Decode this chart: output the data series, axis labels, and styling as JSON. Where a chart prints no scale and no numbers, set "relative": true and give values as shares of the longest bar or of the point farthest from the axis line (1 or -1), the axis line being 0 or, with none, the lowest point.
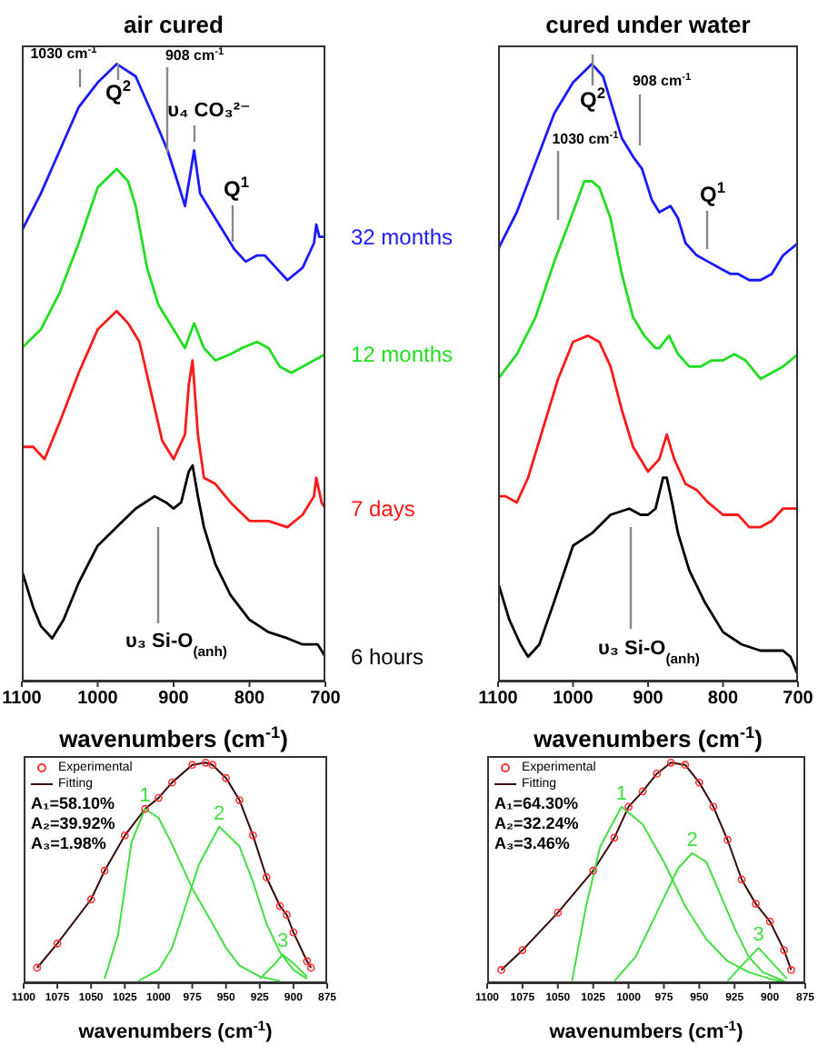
{
  "chart_data": [
    {
      "type": "line",
      "title": "air cured",
      "xlabel": "wavenumbers (cm$^{-1}$)",
      "relative": true,
      "xlim": [
        1100,
        700
      ],
      "xticks": [
        1100,
        1000,
        900,
        800,
        700
      ],
      "legend": false,
      "series": [
        {
          "name": "32 months",
          "color": "#1a1aff",
          "x": [
            1100,
            1075,
            1050,
            1025,
            1000,
            975,
            950,
            925,
            908,
            895,
            885,
            873,
            865,
            850,
            820,
            805,
            790,
            780,
            765,
            750,
            730,
            715,
            712,
            708,
            700
          ],
          "values": [
            0.73,
            0.79,
            0.86,
            0.93,
            0.97,
            1.0,
            0.98,
            0.91,
            0.86,
            0.81,
            0.77,
            0.86,
            0.79,
            0.76,
            0.7,
            0.68,
            0.69,
            0.69,
            0.67,
            0.65,
            0.67,
            0.71,
            0.74,
            0.72,
            0.72
          ]
        },
        {
          "name": "12 months",
          "color": "#22dd22",
          "x": [
            1100,
            1075,
            1050,
            1025,
            1000,
            975,
            960,
            950,
            935,
            920,
            905,
            890,
            885,
            873,
            860,
            845,
            825,
            810,
            790,
            775,
            760,
            745,
            730,
            715,
            700
          ],
          "values": [
            0.54,
            0.57,
            0.63,
            0.71,
            0.8,
            0.83,
            0.81,
            0.77,
            0.67,
            0.61,
            0.58,
            0.55,
            0.54,
            0.58,
            0.54,
            0.52,
            0.53,
            0.54,
            0.55,
            0.54,
            0.51,
            0.5,
            0.51,
            0.52,
            0.53
          ]
        },
        {
          "name": "7 days",
          "color": "#ff1a1a",
          "x": [
            1100,
            1085,
            1070,
            1050,
            1025,
            1000,
            975,
            960,
            945,
            930,
            915,
            900,
            885,
            880,
            875,
            868,
            860,
            845,
            825,
            800,
            775,
            750,
            730,
            715,
            712,
            705,
            700
          ],
          "values": [
            0.38,
            0.38,
            0.36,
            0.42,
            0.5,
            0.57,
            0.6,
            0.58,
            0.55,
            0.47,
            0.39,
            0.36,
            0.4,
            0.48,
            0.52,
            0.4,
            0.33,
            0.32,
            0.29,
            0.26,
            0.26,
            0.25,
            0.27,
            0.3,
            0.33,
            0.29,
            0.28
          ]
        },
        {
          "name": "6 hours",
          "color": "#000000",
          "x": [
            1100,
            1085,
            1075,
            1060,
            1045,
            1025,
            1000,
            975,
            950,
            925,
            910,
            900,
            890,
            880,
            875,
            868,
            860,
            845,
            825,
            800,
            775,
            750,
            730,
            720,
            710,
            700
          ],
          "values": [
            0.18,
            0.12,
            0.09,
            0.07,
            0.1,
            0.16,
            0.22,
            0.25,
            0.28,
            0.3,
            0.29,
            0.28,
            0.29,
            0.34,
            0.35,
            0.3,
            0.25,
            0.19,
            0.14,
            0.1,
            0.08,
            0.07,
            0.06,
            0.06,
            0.06,
            0.04
          ]
        }
      ],
      "annotations": [
        "1030 cm$^{-1}$",
        "Q$^{2}$",
        "908 cm$^{-1}$",
        "υ₄ CO₃²⁻",
        "Q$^{1}$",
        "υ₃ Si-O$_{(anh)}$"
      ]
    },
    {
      "type": "line",
      "title": "cured under water",
      "xlabel": "wavenumbers (cm$^{-1}$)",
      "relative": true,
      "xlim": [
        1100,
        700
      ],
      "xticks": [
        1100,
        1000,
        900,
        800,
        700
      ],
      "legend": false,
      "series": [
        {
          "color": "#1a1aff",
          "x": [
            1100,
            1075,
            1050,
            1025,
            1000,
            975,
            960,
            950,
            935,
            920,
            908,
            895,
            885,
            870,
            860,
            850,
            835,
            820,
            805,
            790,
            780,
            765,
            750,
            735,
            720,
            700
          ],
          "values": [
            0.7,
            0.76,
            0.84,
            0.92,
            0.97,
            1.0,
            0.98,
            0.94,
            0.88,
            0.85,
            0.83,
            0.78,
            0.76,
            0.77,
            0.75,
            0.71,
            0.69,
            0.68,
            0.67,
            0.66,
            0.66,
            0.65,
            0.65,
            0.66,
            0.69,
            0.71
          ]
        },
        {
          "color": "#22dd22",
          "x": [
            1100,
            1075,
            1050,
            1025,
            1000,
            985,
            975,
            965,
            950,
            935,
            920,
            905,
            890,
            885,
            872,
            860,
            845,
            830,
            815,
            800,
            785,
            770,
            750,
            735,
            720,
            700
          ],
          "values": [
            0.49,
            0.53,
            0.59,
            0.68,
            0.76,
            0.81,
            0.81,
            0.8,
            0.75,
            0.66,
            0.59,
            0.56,
            0.54,
            0.54,
            0.56,
            0.53,
            0.51,
            0.51,
            0.52,
            0.52,
            0.53,
            0.52,
            0.49,
            0.5,
            0.51,
            0.53
          ]
        },
        {
          "color": "#ff1a1a",
          "x": [
            1100,
            1090,
            1075,
            1060,
            1040,
            1020,
            1000,
            980,
            965,
            950,
            935,
            920,
            900,
            885,
            875,
            865,
            850,
            835,
            820,
            800,
            780,
            765,
            750,
            735,
            720,
            700
          ],
          "values": [
            0.3,
            0.3,
            0.29,
            0.33,
            0.41,
            0.49,
            0.55,
            0.56,
            0.55,
            0.51,
            0.44,
            0.38,
            0.34,
            0.36,
            0.4,
            0.36,
            0.32,
            0.31,
            0.29,
            0.27,
            0.27,
            0.25,
            0.25,
            0.26,
            0.28,
            0.28
          ]
        },
        {
          "color": "#000000",
          "x": [
            1100,
            1085,
            1070,
            1060,
            1045,
            1025,
            1000,
            975,
            950,
            925,
            910,
            900,
            890,
            880,
            875,
            868,
            860,
            845,
            825,
            800,
            775,
            750,
            730,
            720,
            710,
            700
          ],
          "values": [
            0.16,
            0.1,
            0.06,
            0.04,
            0.06,
            0.13,
            0.22,
            0.24,
            0.27,
            0.28,
            0.27,
            0.27,
            0.28,
            0.33,
            0.33,
            0.29,
            0.24,
            0.18,
            0.13,
            0.08,
            0.06,
            0.05,
            0.05,
            0.05,
            0.04,
            0.01
          ]
        }
      ],
      "annotations": [
        "Q$^{2}$",
        "908 cm$^{-1}$",
        "1030 cm$^{-1}$",
        "Q$^{1}$",
        "υ₃ Si-O$_{(anh)}$"
      ]
    },
    {
      "type": "line",
      "xlabel": "wavenumbers (cm$^{-1}$)",
      "relative": true,
      "xlim": [
        1100,
        875
      ],
      "xticks": [
        1100,
        1075,
        1050,
        1025,
        1000,
        975,
        950,
        925,
        900,
        875
      ],
      "legend": "top left",
      "series": [
        {
          "name": "Experimental",
          "type": "scatter",
          "color": "#ff3333",
          "x": [
            1090,
            1075,
            1050,
            1040,
            1025,
            1010,
            1000,
            990,
            975,
            965,
            960,
            950,
            940,
            930,
            920,
            910,
            905,
            900,
            890,
            887
          ],
          "values": [
            0.07,
            0.18,
            0.38,
            0.51,
            0.67,
            0.79,
            0.84,
            0.91,
            0.99,
            1.0,
            0.99,
            0.93,
            0.83,
            0.67,
            0.48,
            0.35,
            0.31,
            0.23,
            0.1,
            0.07
          ]
        },
        {
          "name": "Fitting",
          "color": "#3a0a0a",
          "x": [
            1090,
            1075,
            1050,
            1040,
            1025,
            1010,
            1000,
            990,
            975,
            965,
            960,
            950,
            940,
            930,
            920,
            910,
            905,
            900,
            890,
            887
          ],
          "values": [
            0.07,
            0.18,
            0.38,
            0.51,
            0.67,
            0.79,
            0.84,
            0.91,
            0.99,
            1.0,
            0.99,
            0.93,
            0.83,
            0.67,
            0.48,
            0.35,
            0.31,
            0.23,
            0.1,
            0.07
          ]
        },
        {
          "name": "1",
          "color": "#44dd44",
          "x": [
            1040,
            1030,
            1020,
            1010,
            1000,
            990,
            975,
            960,
            950,
            940,
            925,
            910
          ],
          "values": [
            0.02,
            0.22,
            0.64,
            0.79,
            0.75,
            0.63,
            0.43,
            0.27,
            0.16,
            0.08,
            0.03,
            0.01
          ]
        },
        {
          "name": "2",
          "color": "#44dd44",
          "x": [
            1015,
            1000,
            990,
            980,
            970,
            955,
            940,
            930,
            920,
            910,
            900,
            890
          ],
          "values": [
            0.01,
            0.06,
            0.16,
            0.35,
            0.54,
            0.71,
            0.62,
            0.46,
            0.27,
            0.14,
            0.06,
            0.02
          ]
        },
        {
          "name": "3",
          "color": "#44dd44",
          "x": [
            925,
            915,
            908,
            900,
            890
          ],
          "values": [
            0.02,
            0.08,
            0.13,
            0.09,
            0.03
          ]
        }
      ],
      "annotations": [
        "A₁=58.10%",
        "A₂=39.92%",
        "A₃=1.98%"
      ]
    },
    {
      "type": "line",
      "xlabel": "wavenumbers (cm$^{-1}$)",
      "relative": true,
      "xlim": [
        1100,
        875
      ],
      "xticks": [
        1100,
        1075,
        1050,
        1025,
        1000,
        975,
        950,
        925,
        900,
        875
      ],
      "legend": "top left",
      "series": [
        {
          "name": "Experimental",
          "type": "scatter",
          "color": "#ff3333",
          "x": [
            1090,
            1075,
            1050,
            1025,
            1010,
            1000,
            990,
            980,
            970,
            960,
            950,
            940,
            930,
            920,
            910,
            900,
            890,
            885
          ],
          "values": [
            0.06,
            0.15,
            0.32,
            0.51,
            0.66,
            0.8,
            0.87,
            0.95,
            1.0,
            0.99,
            0.91,
            0.8,
            0.65,
            0.47,
            0.36,
            0.28,
            0.15,
            0.06
          ]
        },
        {
          "name": "Fitting",
          "color": "#3a0a0a",
          "x": [
            1090,
            1075,
            1050,
            1025,
            1010,
            1000,
            990,
            980,
            970,
            960,
            950,
            940,
            930,
            920,
            910,
            900,
            890,
            885
          ],
          "values": [
            0.06,
            0.15,
            0.32,
            0.51,
            0.66,
            0.8,
            0.87,
            0.95,
            1.0,
            0.99,
            0.91,
            0.8,
            0.65,
            0.47,
            0.36,
            0.28,
            0.15,
            0.06
          ]
        },
        {
          "name": "1",
          "color": "#44dd44",
          "x": [
            1040,
            1030,
            1020,
            1005,
            990,
            975,
            960,
            945,
            930,
            915,
            900,
            885
          ],
          "values": [
            0.01,
            0.35,
            0.62,
            0.8,
            0.72,
            0.55,
            0.35,
            0.2,
            0.1,
            0.05,
            0.02,
            0.0
          ]
        },
        {
          "name": "2",
          "color": "#44dd44",
          "x": [
            1010,
            995,
            980,
            965,
            955,
            945,
            935,
            925,
            915,
            905,
            890
          ],
          "values": [
            0.01,
            0.12,
            0.32,
            0.52,
            0.59,
            0.55,
            0.4,
            0.25,
            0.12,
            0.05,
            0.01
          ]
        },
        {
          "name": "3",
          "color": "#44dd44",
          "x": [
            930,
            920,
            908,
            898,
            888
          ],
          "values": [
            0.01,
            0.08,
            0.16,
            0.09,
            0.02
          ]
        }
      ],
      "annotations": [
        "A₁=64.30%",
        "A₂=32.24%",
        "A₃=3.46%"
      ]
    }
  ]
}
